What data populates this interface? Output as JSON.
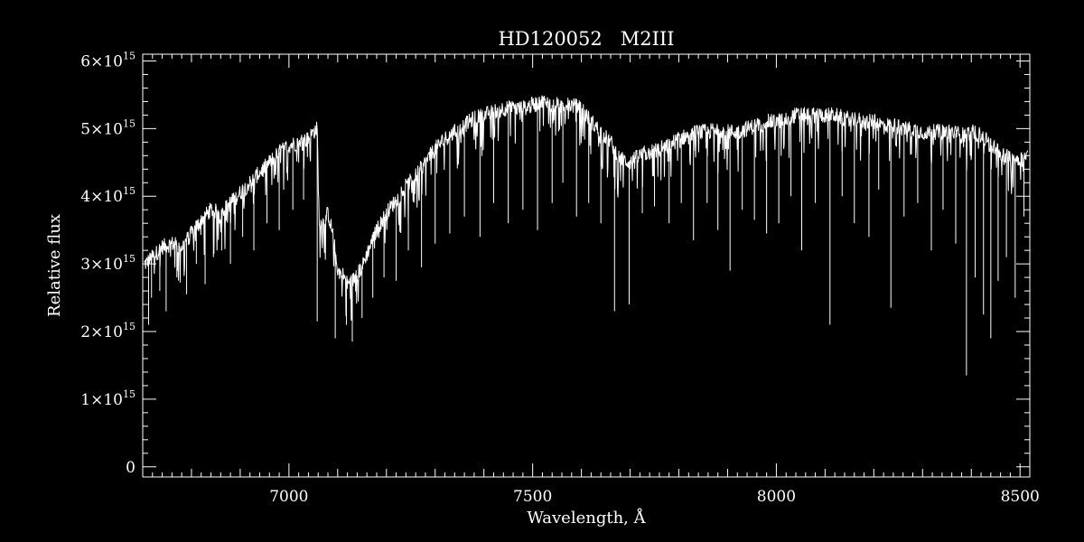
{
  "colors": {
    "background": "#000000",
    "foreground": "#ffffff"
  },
  "chart_data": {
    "type": "line",
    "title": "HD120052   M2III",
    "xlabel": "Wavelength, Å",
    "ylabel": "Relative flux",
    "xlim": [
      6700,
      8520
    ],
    "ylim": [
      -150000000000000.0,
      6100000000000000.0
    ],
    "x_ticks": [
      {
        "value": 7000,
        "label": "7000"
      },
      {
        "value": 7500,
        "label": "7500"
      },
      {
        "value": 8000,
        "label": "8000"
      },
      {
        "value": 8500,
        "label": "8500"
      }
    ],
    "y_ticks": [
      {
        "value": 0,
        "mant": "0",
        "exp": ""
      },
      {
        "value": 1000000000000000.0,
        "mant": "1×10",
        "exp": "15"
      },
      {
        "value": 2000000000000000.0,
        "mant": "2×10",
        "exp": "15"
      },
      {
        "value": 3000000000000000.0,
        "mant": "3×10",
        "exp": "15"
      },
      {
        "value": 4000000000000000.0,
        "mant": "4×10",
        "exp": "15"
      },
      {
        "value": 5000000000000000.0,
        "mant": "5×10",
        "exp": "15"
      },
      {
        "value": 6000000000000000.0,
        "mant": "6×10",
        "exp": "15"
      }
    ],
    "x_minor_step": 20,
    "y_minor_step": 200000000000000.0,
    "series": [
      {
        "continuum": {
          "x": [
            6705,
            6720,
            6740,
            6760,
            6780,
            6800,
            6820,
            6840,
            6860,
            6880,
            6900,
            6920,
            6940,
            6960,
            6980,
            7000,
            7020,
            7040,
            7050,
            7058,
            7062,
            7070,
            7080,
            7090,
            7100,
            7110,
            7120,
            7130,
            7140,
            7150,
            7160,
            7180,
            7200,
            7220,
            7240,
            7260,
            7280,
            7300,
            7320,
            7340,
            7360,
            7380,
            7400,
            7420,
            7440,
            7460,
            7480,
            7500,
            7520,
            7540,
            7560,
            7580,
            7600,
            7620,
            7640,
            7660,
            7680,
            7700,
            7720,
            7740,
            7760,
            7780,
            7800,
            7820,
            7840,
            7860,
            7880,
            7900,
            7920,
            7940,
            7960,
            7980,
            8000,
            8020,
            8040,
            8060,
            8080,
            8100,
            8120,
            8140,
            8160,
            8180,
            8200,
            8220,
            8240,
            8260,
            8280,
            8300,
            8320,
            8340,
            8360,
            8380,
            8400,
            8420,
            8440,
            8460,
            8480,
            8500,
            8515
          ],
          "y": [
            3000000000000000.0,
            3100000000000000.0,
            3250000000000000.0,
            3300000000000000.0,
            3250000000000000.0,
            3450000000000000.0,
            3650000000000000.0,
            3800000000000000.0,
            3750000000000000.0,
            3900000000000000.0,
            4050000000000000.0,
            4200000000000000.0,
            4350000000000000.0,
            4500000000000000.0,
            4650000000000000.0,
            4750000000000000.0,
            4800000000000000.0,
            4850000000000000.0,
            4950000000000000.0,
            5000000000000000.0,
            3600000000000000.0,
            3600000000000000.0,
            3750000000000000.0,
            3450000000000000.0,
            2900000000000000.0,
            2850000000000000.0,
            2700000000000000.0,
            2750000000000000.0,
            2850000000000000.0,
            2950000000000000.0,
            3150000000000000.0,
            3500000000000000.0,
            3750000000000000.0,
            3950000000000000.0,
            4150000000000000.0,
            4300000000000000.0,
            4500000000000000.0,
            4700000000000000.0,
            4850000000000000.0,
            4950000000000000.0,
            5050000000000000.0,
            5150000000000000.0,
            5200000000000000.0,
            5250000000000000.0,
            5300000000000000.0,
            5300000000000000.0,
            5300000000000000.0,
            5350000000000000.0,
            5400000000000000.0,
            5350000000000000.0,
            5350000000000000.0,
            5350000000000000.0,
            5300000000000000.0,
            5100000000000000.0,
            4950000000000000.0,
            4800000000000000.0,
            4550000000000000.0,
            4500000000000000.0,
            4600000000000000.0,
            4650000000000000.0,
            4700000000000000.0,
            4750000000000000.0,
            4850000000000000.0,
            4900000000000000.0,
            4950000000000000.0,
            4950000000000000.0,
            5000000000000000.0,
            4950000000000000.0,
            4950000000000000.0,
            5000000000000000.0,
            5050000000000000.0,
            5100000000000000.0,
            5100000000000000.0,
            5150000000000000.0,
            5200000000000000.0,
            5200000000000000.0,
            5200000000000000.0,
            5200000000000000.0,
            5200000000000000.0,
            5150000000000000.0,
            5150000000000000.0,
            5100000000000000.0,
            5100000000000000.0,
            5050000000000000.0,
            5050000000000000.0,
            5000000000000000.0,
            5000000000000000.0,
            4950000000000000.0,
            4950000000000000.0,
            4950000000000000.0,
            4950000000000000.0,
            4900000000000000.0,
            4950000000000000.0,
            4900000000000000.0,
            4750000000000000.0,
            4650000000000000.0,
            4550000000000000.0,
            4550000000000000.0,
            4600000000000000.0
          ],
          "scatter": 120000000000000.0
        },
        "absorption_lines": {
          "x": [
            6712,
            6718,
            6735,
            6748,
            6770,
            6790,
            6810,
            6828,
            6845,
            6862,
            6880,
            6905,
            6928,
            6955,
            6980,
            7008,
            7030,
            7058,
            7095,
            7118,
            7130,
            7150,
            7172,
            7195,
            7220,
            7245,
            7272,
            7300,
            7330,
            7360,
            7392,
            7420,
            7450,
            7480,
            7510,
            7540,
            7562,
            7590,
            7615,
            7640,
            7668,
            7698,
            7725,
            7750,
            7780,
            7805,
            7830,
            7858,
            7880,
            7905,
            7930,
            7955,
            7980,
            8005,
            8030,
            8052,
            8080,
            8110,
            8135,
            8160,
            8190,
            8210,
            8235,
            8262,
            8290,
            8318,
            8342,
            8368,
            8390,
            8408,
            8425,
            8440,
            8455,
            8472,
            8490,
            8508
          ],
          "y": [
            2100000000000000.0,
            2500000000000000.0,
            2600000000000000.0,
            2300000000000000.0,
            2800000000000000.0,
            2550000000000000.0,
            3000000000000000.0,
            2700000000000000.0,
            3100000000000000.0,
            3200000000000000.0,
            3000000000000000.0,
            3400000000000000.0,
            3200000000000000.0,
            3600000000000000.0,
            3500000000000000.0,
            3800000000000000.0,
            3950000000000000.0,
            2150000000000000.0,
            1900000000000000.0,
            2100000000000000.0,
            1850000000000000.0,
            2200000000000000.0,
            2500000000000000.0,
            2800000000000000.0,
            2750000000000000.0,
            3200000000000000.0,
            2950000000000000.0,
            3300000000000000.0,
            3450000000000000.0,
            3700000000000000.0,
            3400000000000000.0,
            3900000000000000.0,
            3600000000000000.0,
            3800000000000000.0,
            3500000000000000.0,
            3900000000000000.0,
            4200000000000000.0,
            3700000000000000.0,
            3900000000000000.0,
            3600000000000000.0,
            2300000000000000.0,
            2400000000000000.0,
            3750000000000000.0,
            3850000000000000.0,
            3600000000000000.0,
            3900000000000000.0,
            3350000000000000.0,
            3900000000000000.0,
            3500000000000000.0,
            2900000000000000.0,
            3800000000000000.0,
            3650000000000000.0,
            3450000000000000.0,
            3600000000000000.0,
            4000000000000000.0,
            3200000000000000.0,
            3900000000000000.0,
            2100000000000000.0,
            4000000000000000.0,
            3600000000000000.0,
            3400000000000000.0,
            4100000000000000.0,
            2350000000000000.0,
            3700000000000000.0,
            3900000000000000.0,
            3200000000000000.0,
            3800000000000000.0,
            3300000000000000.0,
            1350000000000000.0,
            2800000000000000.0,
            2250000000000000.0,
            1900000000000000.0,
            2750000000000000.0,
            3100000000000000.0,
            2500000000000000.0,
            3700000000000000.0
          ]
        }
      }
    ]
  }
}
